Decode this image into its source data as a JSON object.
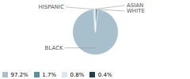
{
  "chart_data": {
    "type": "pie",
    "categories": [
      "BLACK",
      "WHITE",
      "ASIAN",
      "HISPANIC"
    ],
    "values": [
      97.2,
      1.7,
      0.8,
      0.4
    ],
    "colors": [
      "#a8bfcc",
      "#5b8fa8",
      "#dce8ef",
      "#1c3f54"
    ],
    "value_labels": [
      "97.2%",
      "1.7%",
      "0.8%",
      "0.4%"
    ],
    "legend": "lower left"
  }
}
